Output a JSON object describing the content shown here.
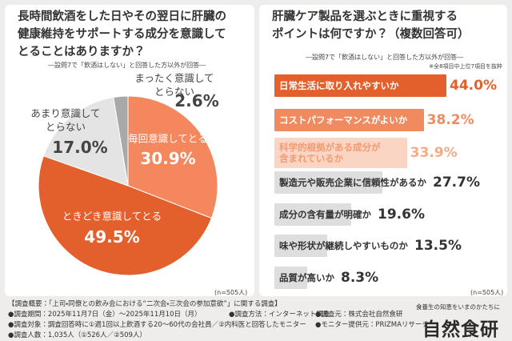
{
  "chart_data": [
    {
      "type": "pie",
      "title": "長時間飲酒をした日やその翌日に肝臓の\n健康維持をサポートする成分を意識して\nとることはありますか？",
      "subtitle": "―設問7で「飲酒はしない」と回答した方以外が回答―",
      "note": "(n=505人)",
      "categories": [
        "毎回意識してとる",
        "ときどき意識してとる",
        "あまり意識して\nとらない",
        "まったく意識して\nとらない"
      ],
      "values": [
        30.9,
        49.5,
        17.0,
        2.6
      ],
      "value_labels": [
        "30.9%",
        "49.5%",
        "17.0%",
        "2.6%"
      ],
      "colors": [
        "#f4875d",
        "#e3602d",
        "#e4e4e4",
        "#a9a9a9"
      ]
    },
    {
      "type": "bar",
      "title": "肝臓ケア製品を選ぶときに重視する\nポイントは何ですか？（複数回答可）",
      "subtitle": "―設問7で「飲酒はしない」と回答した方以外が回答―",
      "footnote": "※全8項目中上位7項目を抜粋",
      "note": "(n=505人)",
      "categories": [
        "日常生活に取り入れやすいか",
        "コストパフォーマンスがよいか",
        "科学的根拠がある成分が\n含まれているか",
        "製造元や販売企業に信頼性があるか",
        "成分の含有量が明確か",
        "味や形状が継続しやすいものか",
        "品質が高いか"
      ],
      "values": [
        44.0,
        38.2,
        33.9,
        27.7,
        19.6,
        13.5,
        8.3
      ],
      "value_labels": [
        "44.0%",
        "38.2%",
        "33.9%",
        "27.7%",
        "19.6%",
        "13.5%",
        "8.3%"
      ],
      "colors": [
        "#e3602d",
        "#f08a5f",
        "#fbd5c3",
        "#dedede",
        "#dedede",
        "#dedede",
        "#dedede"
      ],
      "label_colors": [
        "#ffffff",
        "#ffffff",
        "#f29a72",
        "#333333",
        "#333333",
        "#333333",
        "#333333"
      ],
      "value_label_colors": [
        "#e3602d",
        "#f08a5f",
        "#f6ab86",
        "#333333",
        "#333333",
        "#333333",
        "#333333"
      ]
    }
  ],
  "footer": {
    "heading": "【調査概要：「上司・同僚との飲み会における“二次会・三次会の参加意欲”」に関する調査】",
    "period": "●調査期間：2025年11月7日（金）〜2025年11月10日（月）",
    "method": "●調査方法：インターネット調査",
    "source": "●調査元：株式会社自然食研",
    "target": "●調査対象：調査回答時に①週1回以上飲酒する20〜60代の会社員／②内科医と回答したモニター",
    "provider": "●モニター提供元：PRIZMAリサーチ",
    "count": "●調査人数：1,035人（①526人／②509人）"
  },
  "logo": {
    "tagline": "食養生の知恵をいまのかたちに",
    "name": "自然食研"
  }
}
